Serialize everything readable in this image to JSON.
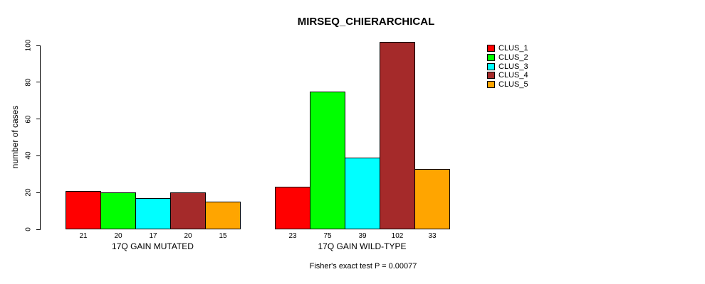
{
  "chart_data": {
    "type": "bar",
    "title": "MIRSEQ_CHIERARCHICAL",
    "ylabel": "number of cases",
    "xlabel": "",
    "ylim": [
      0,
      100
    ],
    "yticks": [
      0,
      20,
      40,
      60,
      80,
      100
    ],
    "grid": false,
    "legend_position": "right-outside",
    "groups": [
      "17Q GAIN MUTATED",
      "17Q GAIN WILD-TYPE"
    ],
    "series": [
      {
        "name": "CLUS_1",
        "color": "#ff0000",
        "values": [
          21,
          23
        ]
      },
      {
        "name": "CLUS_2",
        "color": "#00ff00",
        "values": [
          20,
          75
        ]
      },
      {
        "name": "CLUS_3",
        "color": "#00ffff",
        "values": [
          17,
          39
        ]
      },
      {
        "name": "CLUS_4",
        "color": "#a52a2a",
        "values": [
          20,
          102
        ]
      },
      {
        "name": "CLUS_5",
        "color": "#ffa500",
        "values": [
          15,
          33
        ]
      }
    ],
    "bar_value_labels_shown": true,
    "annotation": "Fisher's exact test P = 0.00077"
  },
  "colors": {
    "axis": "#000000",
    "text": "#000000",
    "background": "#ffffff"
  }
}
